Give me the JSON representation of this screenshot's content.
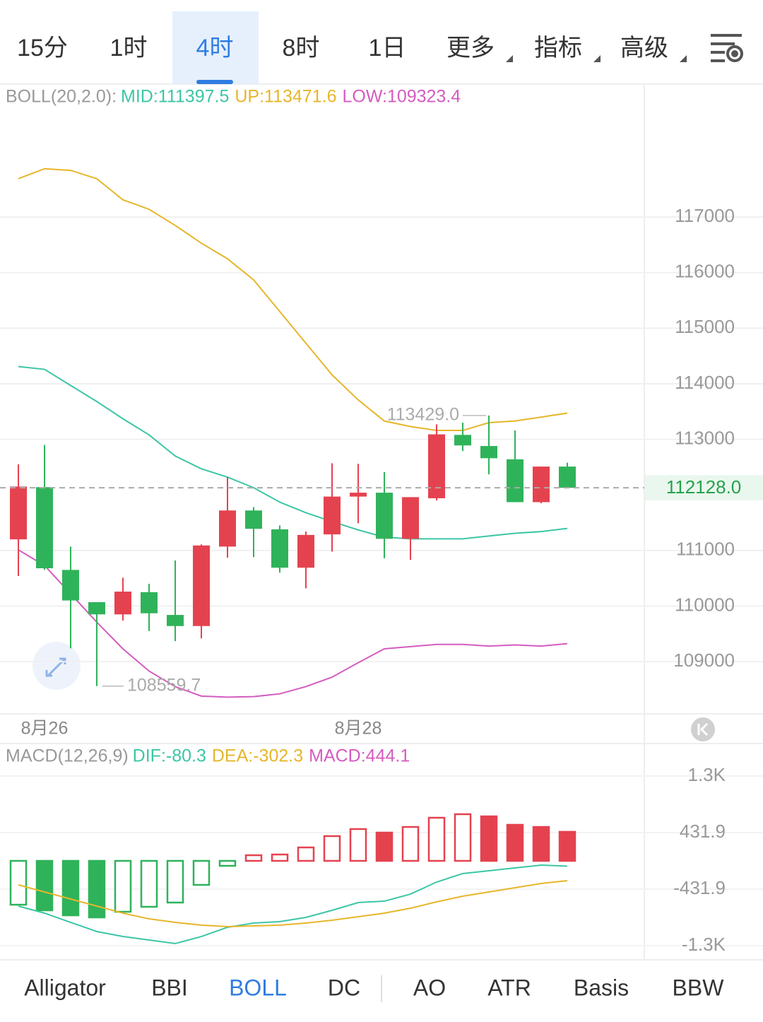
{
  "toolbar": {
    "tabs": [
      "15分",
      "1时",
      "4时",
      "8时",
      "1日",
      "更多",
      "指标",
      "高级"
    ],
    "active_tab": 2
  },
  "chart_data": [
    {
      "type": "candlestick",
      "legend_title": "BOLL(20,2.0):",
      "categories": [
        null,
        "8月26",
        null,
        null,
        null,
        null,
        null,
        null,
        null,
        null,
        null,
        null,
        null,
        "8月28",
        null,
        null,
        null,
        null,
        null,
        null,
        null,
        null
      ],
      "open": [
        111200,
        112140,
        110650,
        110070,
        109850,
        110250,
        109840,
        109640,
        111070,
        111720,
        111380,
        110690,
        111290,
        111970,
        112040,
        111210,
        111940,
        113080,
        112880,
        112640,
        111870,
        112510
      ],
      "high": [
        112550,
        112900,
        111070,
        110070,
        110510,
        110400,
        110820,
        111110,
        112320,
        111780,
        111450,
        111340,
        112570,
        112560,
        112410,
        111960,
        113270,
        113300,
        113429,
        113160,
        112510,
        112580
      ],
      "low": [
        110540,
        110650,
        109240,
        108559.7,
        109740,
        109550,
        109370,
        109420,
        110870,
        110880,
        110600,
        110320,
        110980,
        111490,
        110860,
        110830,
        111900,
        112790,
        112370,
        111870,
        111850,
        112128
      ],
      "close": [
        112150,
        110680,
        110100,
        109850,
        110260,
        109870,
        109640,
        111090,
        111720,
        111390,
        110690,
        111280,
        111970,
        112040,
        111210,
        111960,
        113090,
        112890,
        112660,
        111870,
        112510,
        112128
      ],
      "up_color": "#e5424f",
      "down_color": "#2fb35a",
      "series": [
        {
          "name": "MID:111397.5",
          "color": "#3cc6a6",
          "values": [
            114310,
            114260,
            113970,
            113680,
            113370,
            113080,
            112700,
            112470,
            112320,
            112130,
            111870,
            111680,
            111520,
            111370,
            111240,
            111210,
            111210,
            111210,
            111260,
            111310,
            111340,
            111397.5
          ]
        },
        {
          "name": "UP:113471.6",
          "color": "#e6b62a",
          "values": [
            117690,
            117870,
            117840,
            117690,
            117310,
            117140,
            116850,
            116530,
            116250,
            115870,
            115300,
            114730,
            114160,
            113710,
            113330,
            113230,
            113160,
            113160,
            113300,
            113330,
            113400,
            113471.6
          ]
        },
        {
          "name": "LOW:109323.4",
          "color": "#d45cc0",
          "values": [
            111010,
            110730,
            110220,
            109710,
            109230,
            108830,
            108550,
            108380,
            108360,
            108370,
            108420,
            108550,
            108720,
            108980,
            109230,
            109270,
            109310,
            109310,
            109280,
            109300,
            109280,
            109323.4
          ]
        }
      ],
      "ylim": [
        108060,
        119380
      ],
      "yticks": [
        109000,
        110000,
        111000,
        113000,
        114000,
        115000,
        116000,
        117000
      ],
      "grid": true,
      "last_price": {
        "value": 112128,
        "label": "112128.0"
      },
      "high_label": {
        "value": 113429,
        "label": "113429.0"
      },
      "low_label": {
        "value": 108559.7,
        "label": "108559.7"
      }
    },
    {
      "type": "macd",
      "legend_title": "MACD(12,26,9)",
      "series": [
        {
          "name": "DIF:-80.3",
          "color": "#3cc6a6",
          "type": "line",
          "values": [
            -691,
            -799,
            -940,
            -1080,
            -1156,
            -1210,
            -1264,
            -1156,
            -1015,
            -950,
            -929,
            -864,
            -756,
            -637,
            -616,
            -508,
            -324,
            -194,
            -151,
            -108,
            -65,
            -80.3
          ]
        },
        {
          "name": "DEA:-302.3",
          "color": "#e6b62a",
          "type": "line",
          "values": [
            -367,
            -475,
            -583,
            -691,
            -799,
            -886,
            -940,
            -983,
            -1004,
            -994,
            -983,
            -950,
            -907,
            -853,
            -799,
            -724,
            -626,
            -540,
            -475,
            -410,
            -346,
            -302.3
          ]
        },
        {
          "name": "MACD:444.1",
          "color": "#d45cc0",
          "type": "bar",
          "values": [
            -670,
            -756,
            -832,
            -864,
            -778,
            -702,
            -637,
            -367,
            -76,
            86,
            97,
            205,
            378,
            486,
            432,
            518,
            659,
            713,
            680,
            551,
            518,
            444.1
          ]
        }
      ],
      "up_color": "#e5424f",
      "down_color": "#2fb35a",
      "ylim": [
        -1512,
        1793
      ],
      "yticks": [
        {
          "value": -1295.7,
          "label": "-1.3K"
        },
        -431.9,
        431.9,
        {
          "value": 1295.7,
          "label": "1.3K"
        }
      ],
      "grid": true
    }
  ],
  "indicator_tabs": {
    "tabs": [
      "Alligator",
      "BBI",
      "BOLL",
      "DC",
      "AO",
      "ATR",
      "Basis",
      "BBW"
    ],
    "active_tab": 2
  }
}
